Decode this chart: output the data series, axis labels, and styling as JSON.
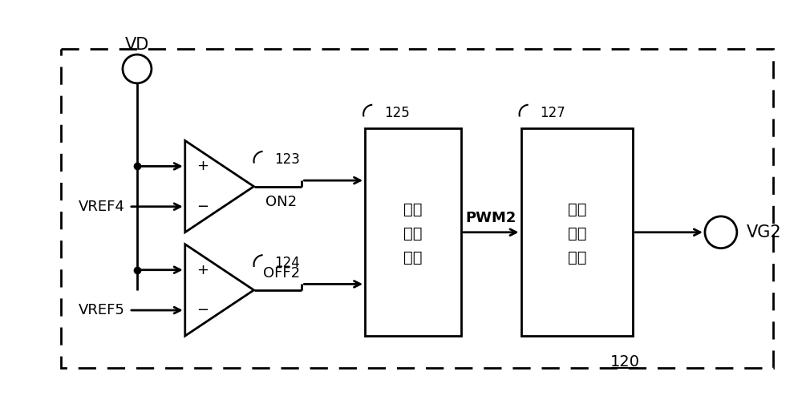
{
  "bg_color": "#ffffff",
  "line_color": "#000000",
  "vd_label": "VD",
  "vg2_label": "VG2",
  "pwm2_label": "PWM2",
  "label_120": "120",
  "comp1_num": "123",
  "comp1_out": "ON2",
  "comp1_ref": "VREF4",
  "comp2_num": "124",
  "comp2_out": "OFF2",
  "comp2_ref": "VREF5",
  "logic_lines": [
    "逻辑",
    "控制",
    "电路"
  ],
  "logic_num": "125",
  "drive_lines": [
    "开关",
    "驱动",
    "电路"
  ],
  "drive_num": "127"
}
